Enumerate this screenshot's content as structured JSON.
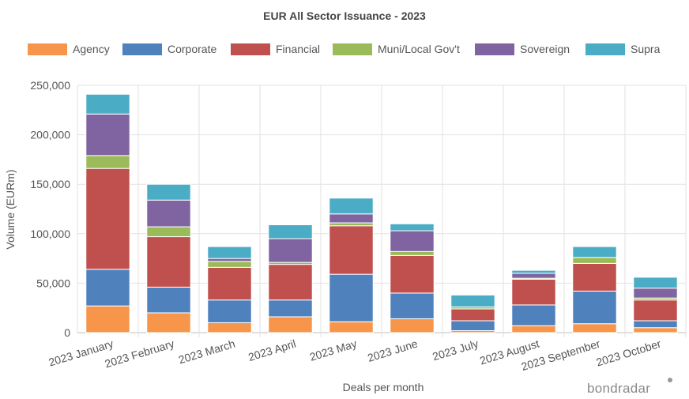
{
  "chart_data": {
    "type": "bar",
    "stacked": true,
    "title": "EUR All Sector Issuance - 2023",
    "xlabel": "Deals per month",
    "ylabel": "Volume (EURm)",
    "ylim": [
      0,
      250000
    ],
    "yticks": [
      0,
      50000,
      100000,
      150000,
      200000,
      250000
    ],
    "ytick_labels": [
      "0",
      "50,000",
      "100,000",
      "150,000",
      "200,000",
      "250,000"
    ],
    "grid": true,
    "legend_position": "top",
    "categories": [
      "2023 January",
      "2023 February",
      "2023 March",
      "2023 April",
      "2023 May",
      "2023 June",
      "2023 July",
      "2023 August",
      "2023 September",
      "2023 October"
    ],
    "series": [
      {
        "name": "Agency",
        "color": "#f7954a",
        "values": [
          27000,
          20000,
          10000,
          16000,
          11000,
          14000,
          2000,
          7000,
          9000,
          5000
        ]
      },
      {
        "name": "Corporate",
        "color": "#4f81bd",
        "values": [
          37000,
          26000,
          23000,
          17000,
          48000,
          26000,
          10000,
          21000,
          33000,
          7000
        ]
      },
      {
        "name": "Financial",
        "color": "#c0504d",
        "values": [
          102000,
          51000,
          33000,
          36000,
          49000,
          38000,
          12000,
          26000,
          28000,
          21000
        ]
      },
      {
        "name": "Muni/Local Gov't",
        "color": "#9bbb59",
        "values": [
          13000,
          10000,
          6000,
          2000,
          3000,
          4000,
          2000,
          1000,
          6000,
          2000
        ]
      },
      {
        "name": "Sovereign",
        "color": "#8064a2",
        "values": [
          42000,
          27000,
          3000,
          24000,
          9000,
          21000,
          0,
          5000,
          0,
          10000
        ]
      },
      {
        "name": "Supra",
        "color": "#4bacc6",
        "values": [
          20000,
          16000,
          12000,
          14000,
          16000,
          7000,
          12000,
          3000,
          11000,
          11000
        ]
      }
    ]
  },
  "branding": {
    "logo_text": "bondradar"
  }
}
